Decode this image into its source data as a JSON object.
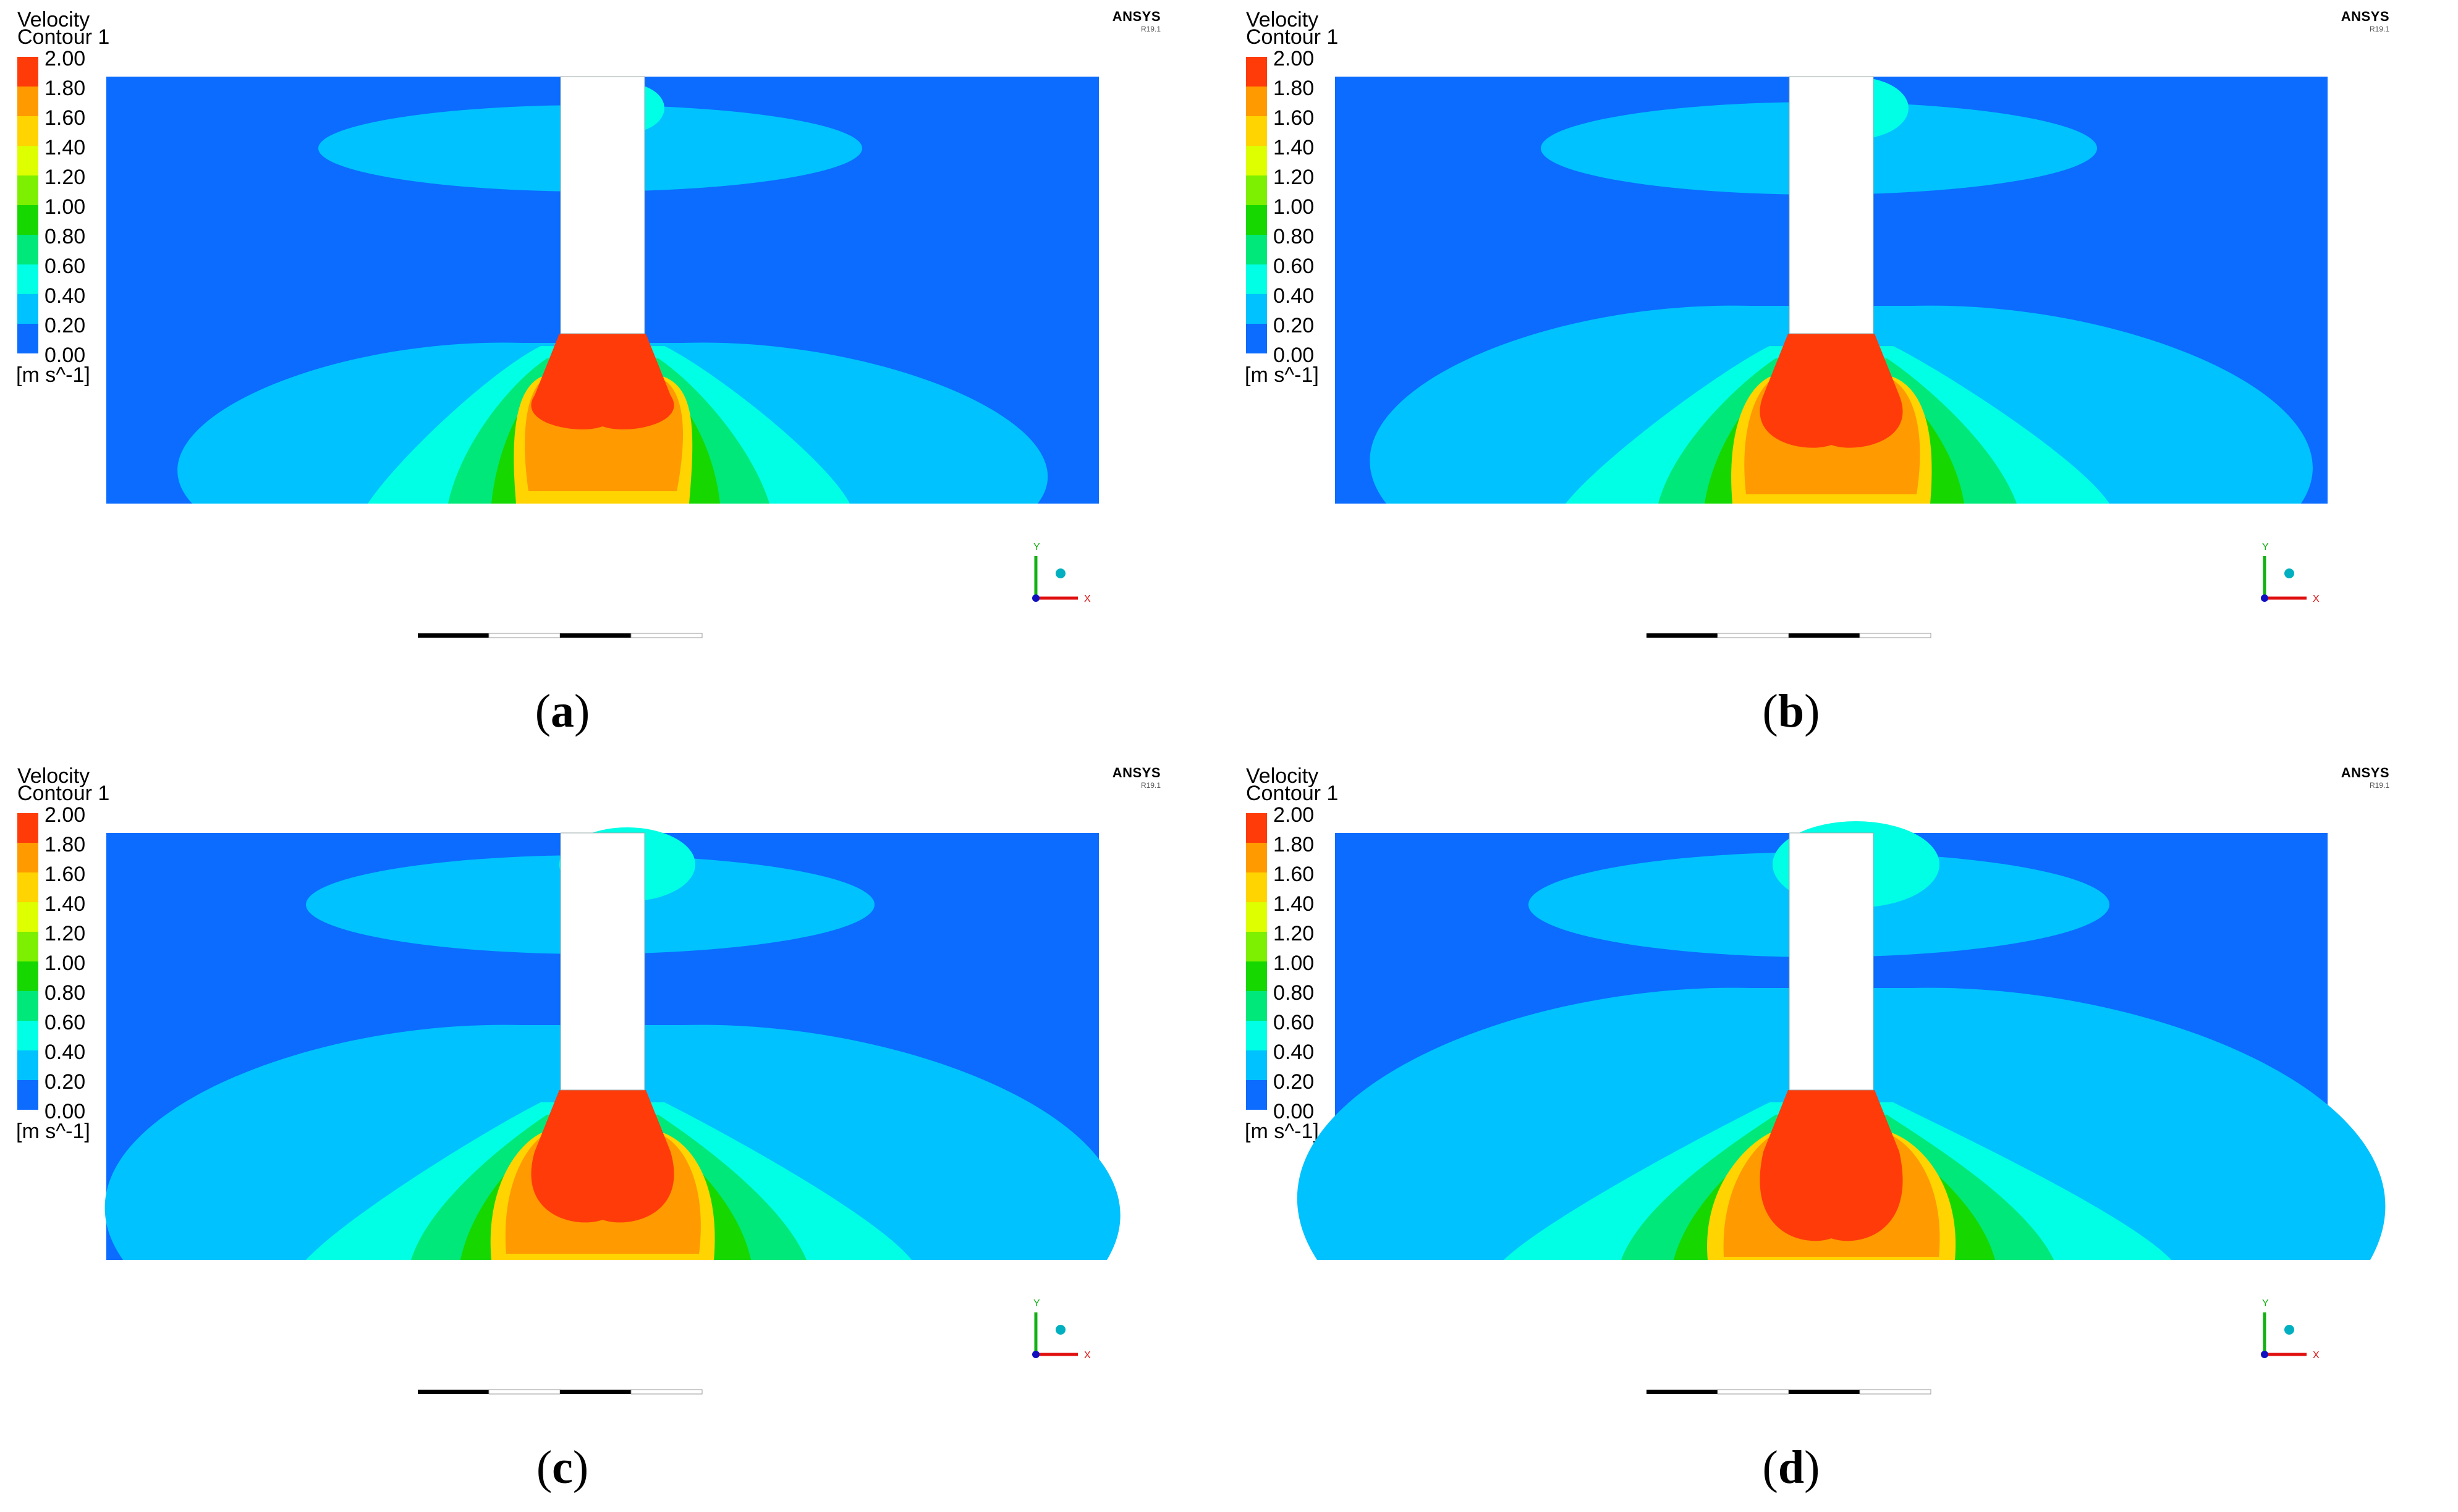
{
  "legend": {
    "title_line1": "Velocity",
    "title_line2": "Contour 1",
    "unit": "[m s^-1]",
    "ticks": [
      "2.00",
      "1.80",
      "1.60",
      "1.40",
      "1.20",
      "1.00",
      "0.80",
      "0.60",
      "0.40",
      "0.20",
      "0.00"
    ],
    "colors": [
      "#ff3b0a",
      "#ff9a00",
      "#ffd400",
      "#ddff00",
      "#7cf000",
      "#16d800",
      "#00e87a",
      "#00ffe4",
      "#00c2ff",
      "#0b6cff"
    ]
  },
  "brand": {
    "name": "ANSYS",
    "version": "R19.1"
  },
  "axis_triad": {
    "y_label": "Y",
    "x_label": "X"
  },
  "panels": [
    {
      "caption": "a"
    },
    {
      "caption": "b"
    },
    {
      "caption": "c"
    },
    {
      "caption": "d"
    }
  ]
}
